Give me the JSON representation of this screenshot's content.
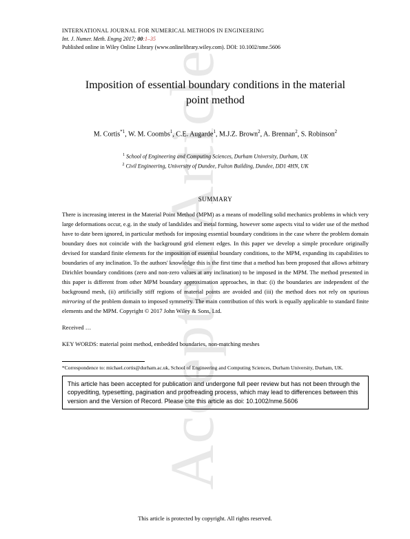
{
  "watermark": "Accepted Article",
  "header": {
    "journal_caps": "INTERNATIONAL JOURNAL FOR NUMERICAL METHODS IN ENGINEERING",
    "citation_prefix": "Int. J. Numer. Meth. Engng",
    "year": "2017;",
    "volume": "00",
    "pages": ":1–35",
    "published_line": "Published online in Wiley Online Library (www.onlinelibrary.wiley.com). DOI: 10.1002/nme.5606"
  },
  "title": "Imposition of essential boundary conditions in the material point method",
  "authors": {
    "a1": "M. Cortis",
    "a1sup": "*1",
    "a2": "W. M. Coombs",
    "a2sup": "1",
    "a3": "C.E. Augarde",
    "a3sup": "1",
    "a4": "M.J.Z. Brown",
    "a4sup": "2",
    "a5": "A. Brennan",
    "a5sup": "2",
    "a6": "S. Robinson",
    "a6sup": "2"
  },
  "affiliations": {
    "aff1_sup": "1",
    "aff1": " School of Engineering and Computing Sciences, Durham University, Durham, UK",
    "aff2_sup": "2",
    "aff2": " Civil Engineering, University of Dundee, Fulton Building, Dundee, DD1 4HN, UK"
  },
  "summary_heading": "SUMMARY",
  "summary_part1": "There is increasing interest in the Material Point Method (MPM) as a means of modelling solid mechanics problems in which very large deformations occur, e.g. in the study of landslides and metal forming, however some aspects vital to wider use of the method have to date been ignored, in particular methods for imposing essential boundary conditions in the case where the problem domain boundary does not coincide with the background grid element edges. In this paper we develop a simple procedure originally devised for standard finite elements for the imposition of essential boundary conditions, to the MPM, expanding its capabilities to boundaries of any inclination. To the authors' knowledge this is the first time that a method has been proposed that allows arbitrary Dirichlet boundary conditions (zero and non-zero values at any inclination) to be imposed in the MPM. The method presented in this paper is different from other MPM boundary approximation approaches, in that: (i) the boundaries are independent of the background mesh, (ii) artificially stiff regions of material points are avoided and (iii) the method does not rely on spurious ",
  "summary_em": "mirroring",
  "summary_part2": " of the problem domain to imposed symmetry. The main contribution of this work is equally applicable to standard finite elements and the MPM. Copyright © 2017 John Wiley & Sons, Ltd.",
  "received": "Received …",
  "keywords_label": "KEY WORDS:   ",
  "keywords_text": "material point method, embedded boundaries, non-matching meshes",
  "footnote": "*Correspondence to: michael.cortis@durham.ac.uk, School of Engineering and Computing Sciences, Durham University, Durham, UK.",
  "notice": "This article has been accepted for publication and undergone full peer review but has not been through the copyediting, typesetting, pagination and proofreading process, which may lead to differences between this version and the Version of Record. Please cite this article as doi: 10.1002/nme.5606",
  "copyright_footer": "This article is protected by copyright. All rights reserved."
}
